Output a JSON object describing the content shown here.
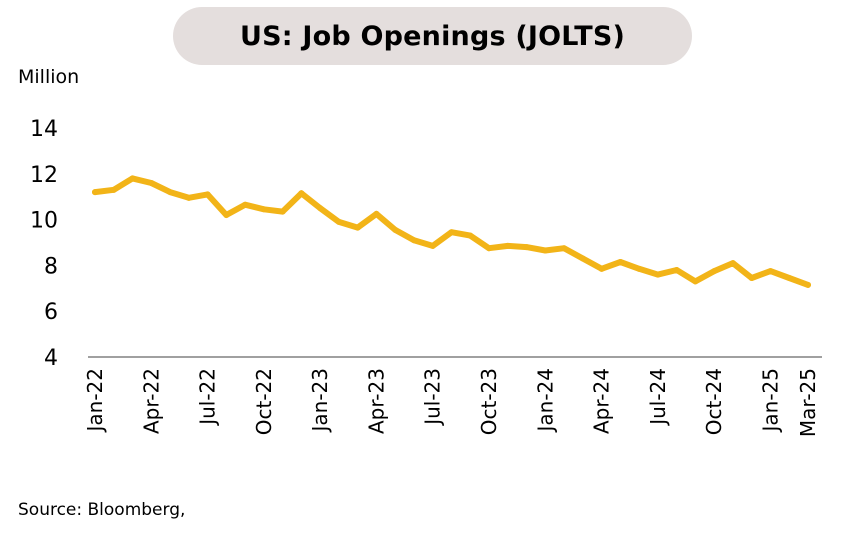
{
  "chart_data": {
    "type": "line",
    "title": "US: Job Openings (JOLTS)",
    "ylabel": "Million",
    "xlabel": "",
    "ylim": [
      4,
      14
    ],
    "yticks": [
      4,
      6,
      8,
      10,
      12,
      14
    ],
    "grid": false,
    "source": "Source: Bloomberg,",
    "line_color": "#f2b418",
    "x": [
      "Jan-22",
      "Feb-22",
      "Mar-22",
      "Apr-22",
      "May-22",
      "Jun-22",
      "Jul-22",
      "Aug-22",
      "Sep-22",
      "Oct-22",
      "Nov-22",
      "Dec-22",
      "Jan-23",
      "Feb-23",
      "Mar-23",
      "Apr-23",
      "May-23",
      "Jun-23",
      "Jul-23",
      "Aug-23",
      "Sep-23",
      "Oct-23",
      "Nov-23",
      "Dec-23",
      "Jan-24",
      "Feb-24",
      "Mar-24",
      "Apr-24",
      "May-24",
      "Jun-24",
      "Jul-24",
      "Aug-24",
      "Sep-24",
      "Oct-24",
      "Nov-24",
      "Dec-24",
      "Jan-25",
      "Feb-25",
      "Mar-25"
    ],
    "xtick_labels": [
      "Jan-22",
      "Apr-22",
      "Jul-22",
      "Oct-22",
      "Jan-23",
      "Apr-23",
      "Jul-23",
      "Oct-23",
      "Jan-24",
      "Apr-24",
      "Jul-24",
      "Oct-24",
      "Jan-25",
      "Mar-25"
    ],
    "series": [
      {
        "name": "Job Openings",
        "values": [
          11.2,
          11.3,
          11.8,
          11.6,
          11.2,
          10.95,
          11.1,
          10.2,
          10.65,
          10.45,
          10.35,
          11.15,
          10.5,
          9.9,
          9.65,
          10.25,
          9.55,
          9.1,
          8.85,
          9.45,
          9.3,
          8.75,
          8.85,
          8.8,
          8.65,
          8.75,
          8.3,
          7.85,
          8.15,
          7.85,
          7.6,
          7.8,
          7.3,
          7.75,
          8.1,
          7.45,
          7.75,
          7.45,
          7.15
        ]
      }
    ]
  }
}
